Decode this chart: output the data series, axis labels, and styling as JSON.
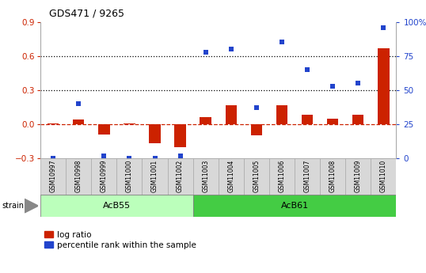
{
  "title": "GDS471 / 9265",
  "samples": [
    "GSM10997",
    "GSM10998",
    "GSM10999",
    "GSM11000",
    "GSM11001",
    "GSM11002",
    "GSM11003",
    "GSM11004",
    "GSM11005",
    "GSM11006",
    "GSM11007",
    "GSM11008",
    "GSM11009",
    "GSM11010"
  ],
  "log_ratio": [
    0.01,
    0.04,
    -0.09,
    0.01,
    -0.17,
    -0.2,
    0.06,
    0.17,
    -0.1,
    0.17,
    0.08,
    0.05,
    0.08,
    0.67
  ],
  "percentile_rank": [
    0,
    40,
    2,
    0,
    0,
    2,
    78,
    80,
    37,
    85,
    65,
    53,
    55,
    96
  ],
  "groups": [
    {
      "label": "AcB55",
      "start": 0,
      "end": 5,
      "color": "#bbffbb"
    },
    {
      "label": "AcB61",
      "start": 6,
      "end": 13,
      "color": "#44cc44"
    }
  ],
  "ylim_left": [
    -0.3,
    0.9
  ],
  "ylim_right": [
    0,
    100
  ],
  "yticks_left": [
    -0.3,
    0.0,
    0.3,
    0.6,
    0.9
  ],
  "yticks_right": [
    0,
    25,
    50,
    75,
    100
  ],
  "hlines": [
    0.3,
    0.6
  ],
  "bar_color_red": "#cc2200",
  "bar_color_blue": "#2244cc",
  "zero_line_color": "#cc2200",
  "tickbox_color": "#d8d8d8",
  "tickbox_edge": "#aaaaaa",
  "legend_labels": [
    "log ratio",
    "percentile rank within the sample"
  ]
}
